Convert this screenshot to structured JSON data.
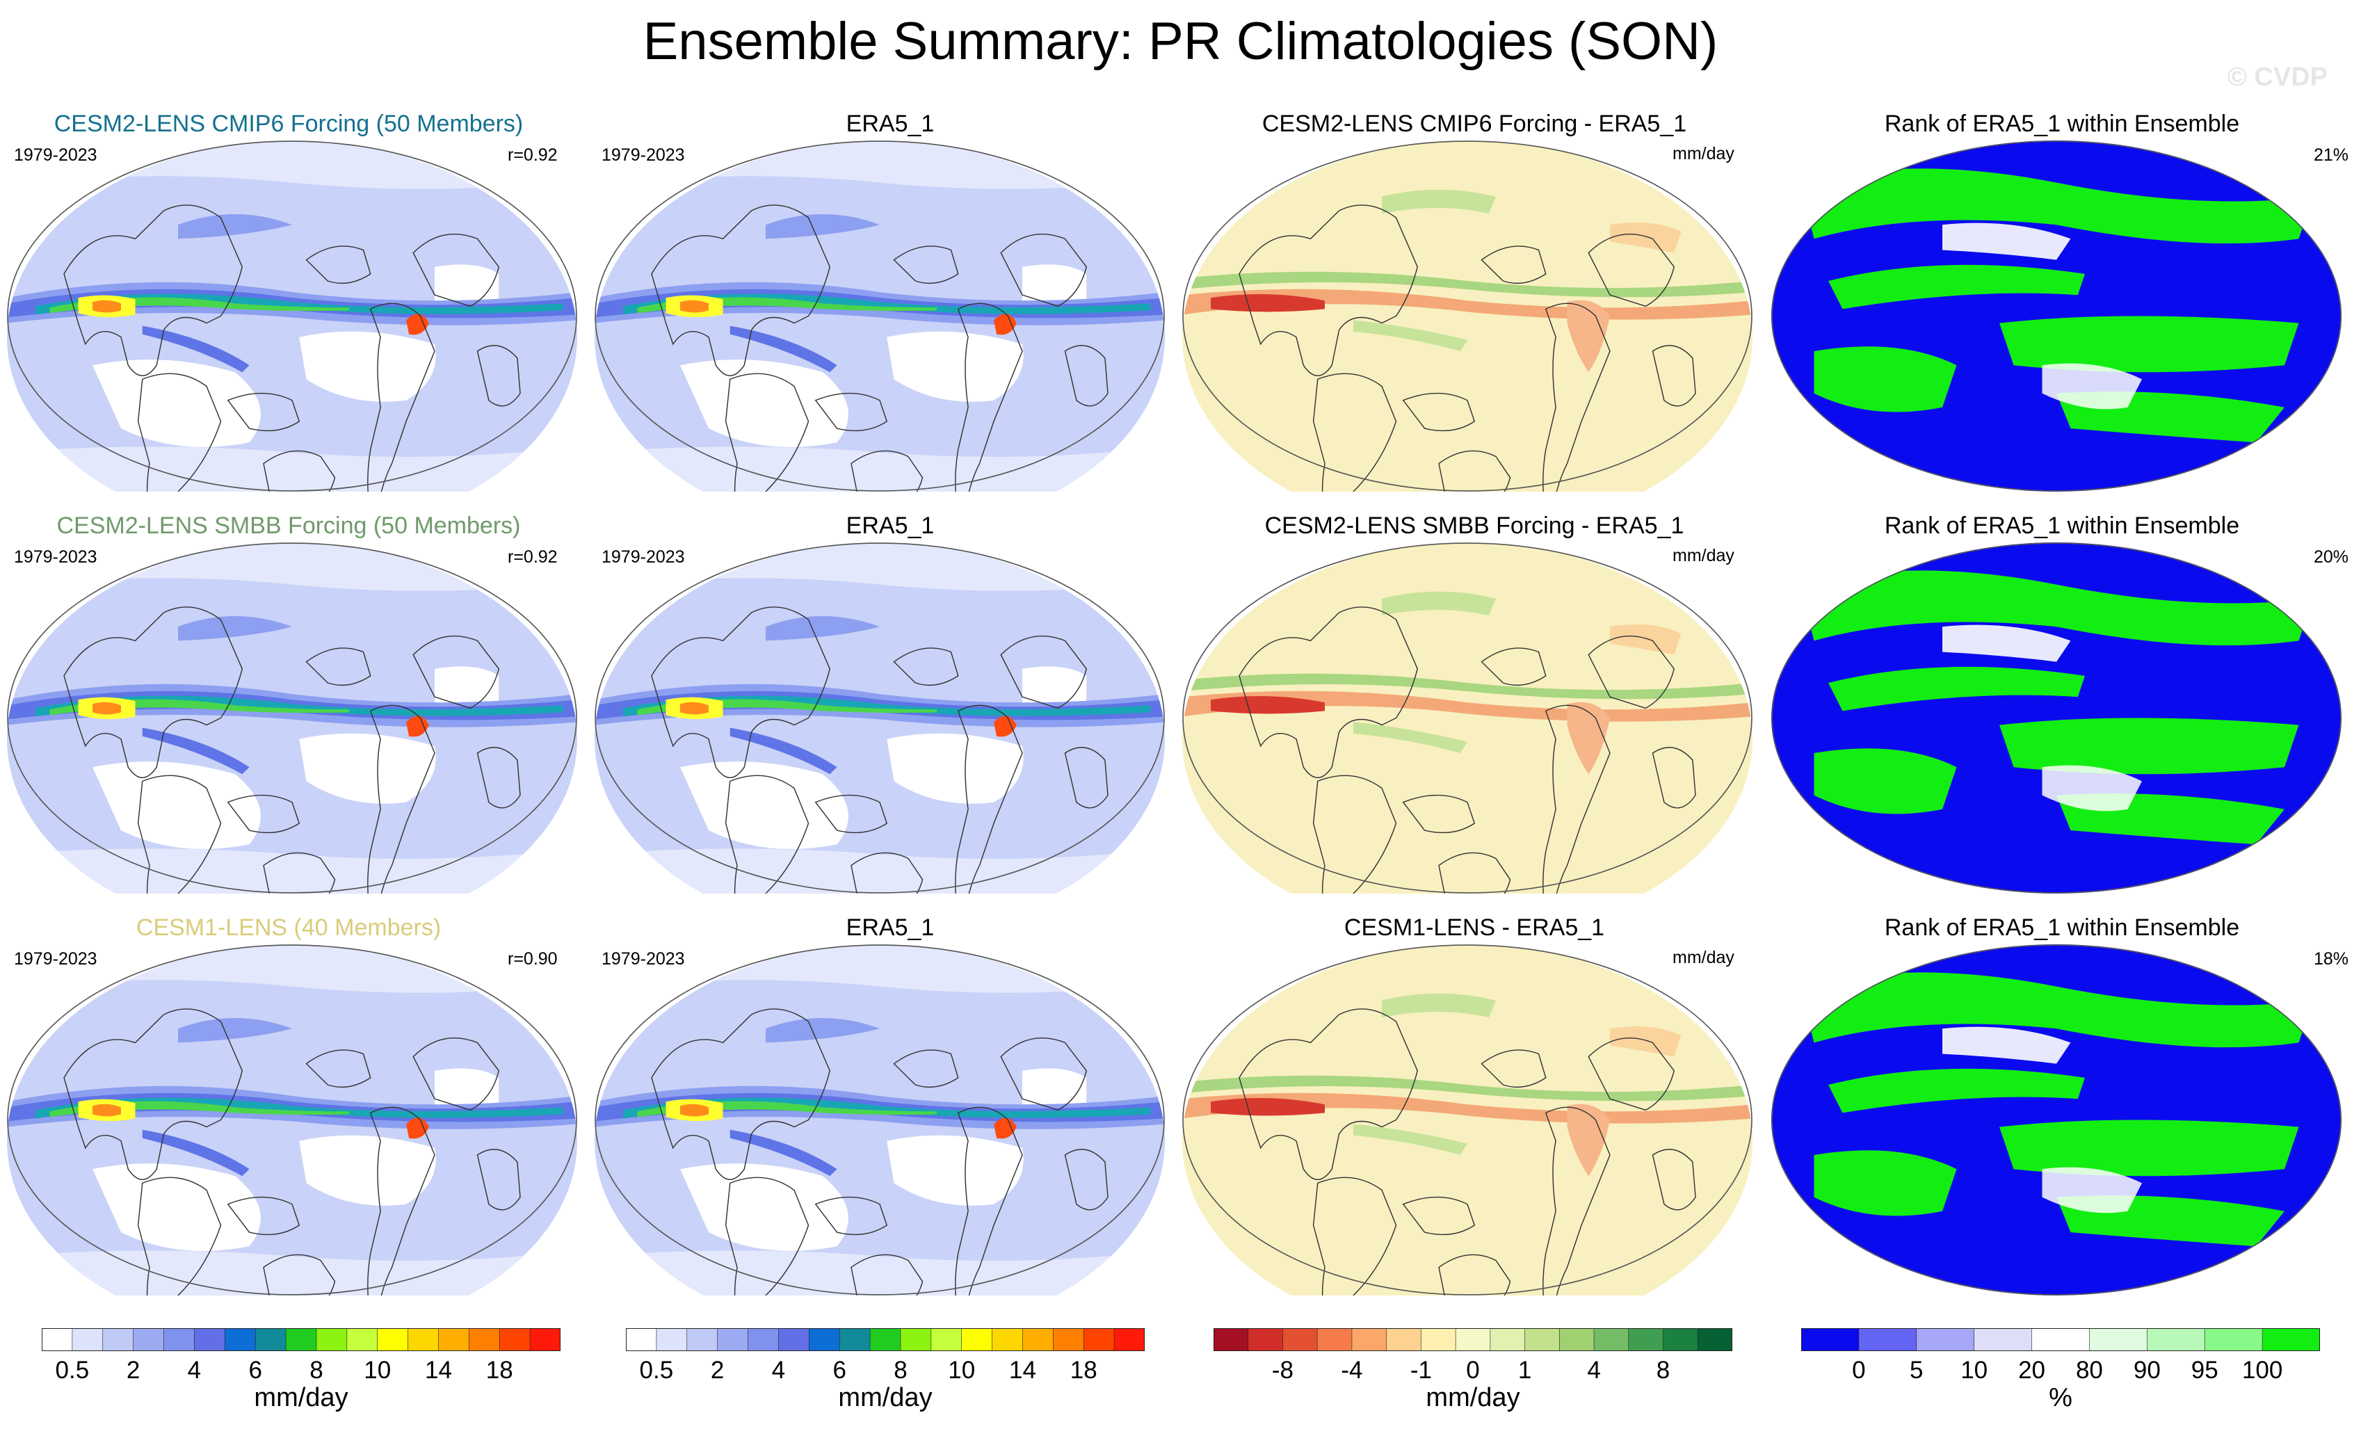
{
  "title": "Ensemble Summary: PR Climatologies (SON)",
  "watermark": "© CVDP",
  "rows": [
    {
      "model": {
        "title": "CESM2-LENS CMIP6 Forcing (50 Members)",
        "title_color": "#14708f",
        "period": "1979-2023",
        "corr": "r=0.92"
      },
      "obs": {
        "title": "ERA5_1",
        "period": "1979-2023"
      },
      "diff": {
        "title": "CESM2-LENS CMIP6 Forcing - ERA5_1",
        "units": "mm/day"
      },
      "rank": {
        "title": "Rank of ERA5_1 within Ensemble",
        "pct": "21%"
      }
    },
    {
      "model": {
        "title": "CESM2-LENS SMBB Forcing (50 Members)",
        "title_color": "#6f9a6a",
        "period": "1979-2023",
        "corr": "r=0.92"
      },
      "obs": {
        "title": "ERA5_1",
        "period": "1979-2023"
      },
      "diff": {
        "title": "CESM2-LENS SMBB Forcing - ERA5_1",
        "units": "mm/day"
      },
      "rank": {
        "title": "Rank of ERA5_1 within Ensemble",
        "pct": "20%"
      }
    },
    {
      "model": {
        "title": "CESM1-LENS (40 Members)",
        "title_color": "#d9cc7a",
        "period": "1979-2023",
        "corr": "r=0.90"
      },
      "obs": {
        "title": "ERA5_1",
        "period": "1979-2023"
      },
      "diff": {
        "title": "CESM1-LENS - ERA5_1",
        "units": "mm/day"
      },
      "rank": {
        "title": "Rank of ERA5_1 within Ensemble",
        "pct": "18%"
      }
    }
  ],
  "colorbars": [
    {
      "units": "mm/day",
      "colors": [
        "#ffffff",
        "#dde3fb",
        "#bfcaf7",
        "#9cabf1",
        "#7f93ee",
        "#636fe6",
        "#0d6ed6",
        "#128a99",
        "#21cc21",
        "#8cf20f",
        "#c6ff3c",
        "#ffff00",
        "#ffd700",
        "#ffae00",
        "#ff8000",
        "#ff4400",
        "#ff1a0a"
      ],
      "labels": [
        "0.5",
        "2",
        "4",
        "6",
        "8",
        "10",
        "14",
        "18"
      ],
      "label_edges": [
        1,
        3,
        5,
        7,
        9,
        11,
        13,
        15
      ]
    },
    {
      "units": "mm/day",
      "colors": [
        "#ffffff",
        "#dde3fb",
        "#bfcaf7",
        "#9cabf1",
        "#7f93ee",
        "#636fe6",
        "#0d6ed6",
        "#128a99",
        "#21cc21",
        "#8cf20f",
        "#c6ff3c",
        "#ffff00",
        "#ffd700",
        "#ffae00",
        "#ff8000",
        "#ff4400",
        "#ff1a0a"
      ],
      "labels": [
        "0.5",
        "2",
        "4",
        "6",
        "8",
        "10",
        "14",
        "18"
      ],
      "label_edges": [
        1,
        3,
        5,
        7,
        9,
        11,
        13,
        15
      ]
    },
    {
      "units": "mm/day",
      "colors": [
        "#a50f24",
        "#d12e29",
        "#e35032",
        "#f57c4a",
        "#fba76a",
        "#fdd290",
        "#fff0b0",
        "#f5f9c7",
        "#e2f0b0",
        "#c3e08a",
        "#a1d070",
        "#74bc65",
        "#3f9e4f",
        "#1b8140",
        "#066134"
      ],
      "labels": [
        "-8",
        "-4",
        "-1",
        "0",
        "1",
        "4",
        "8"
      ],
      "label_edges": [
        2,
        4,
        6,
        7.5,
        9,
        11,
        13
      ]
    },
    {
      "units": "%",
      "colors": [
        "#0a0aee",
        "#6464f5",
        "#a7a7f8",
        "#dedef9",
        "#ffffff",
        "#e0fbe0",
        "#b8f8b8",
        "#88f888",
        "#12ee12"
      ],
      "labels": [
        "0",
        "5",
        "10",
        "20",
        "80",
        "90",
        "95",
        "100"
      ],
      "label_edges": [
        1,
        2,
        3,
        4,
        5,
        6,
        7,
        8
      ]
    }
  ]
}
